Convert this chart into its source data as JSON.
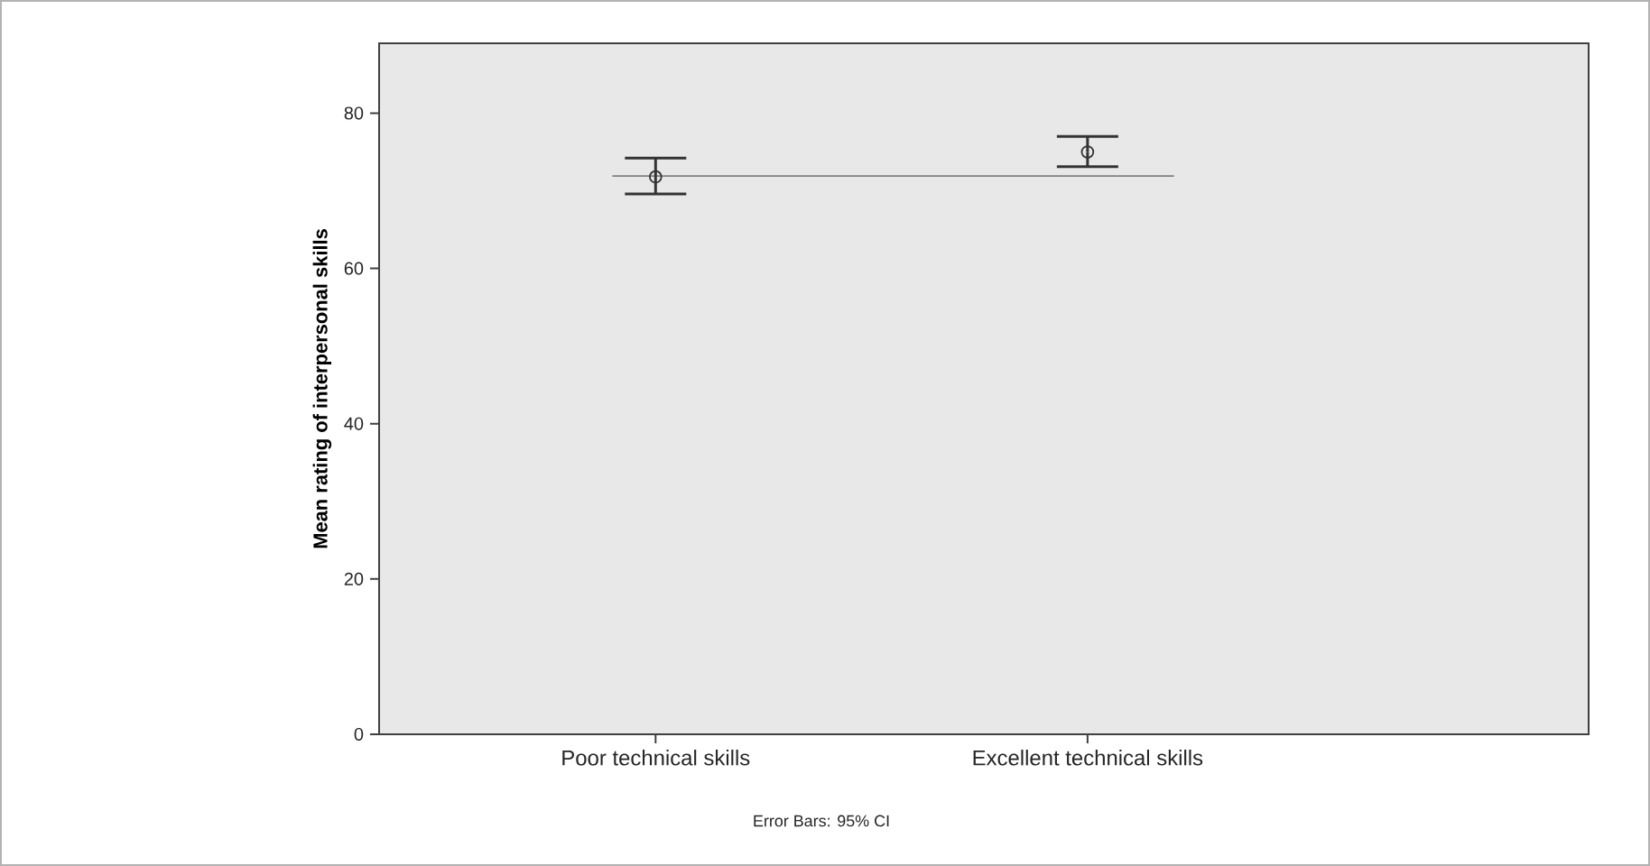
{
  "chart_data": {
    "type": "scatter",
    "ylabel": "Mean rating of interpersonal skills",
    "categories": [
      "Poor technical skills",
      "Excellent technical skills"
    ],
    "series": [
      {
        "color": "#333333",
        "values": [
          71.8,
          75.0
        ],
        "errors": [
          [
            69.6,
            74.2
          ],
          [
            73.1,
            77.0
          ]
        ]
      }
    ],
    "marker": "circle",
    "ylim": [
      0,
      89
    ],
    "yticks": [
      0,
      20,
      40,
      60,
      80
    ],
    "grid": false,
    "ref_lines": [
      {
        "axis": "y",
        "value": 71.9,
        "color": "#808080"
      }
    ],
    "annotations": [
      "Error Bars: 95% CI"
    ]
  }
}
